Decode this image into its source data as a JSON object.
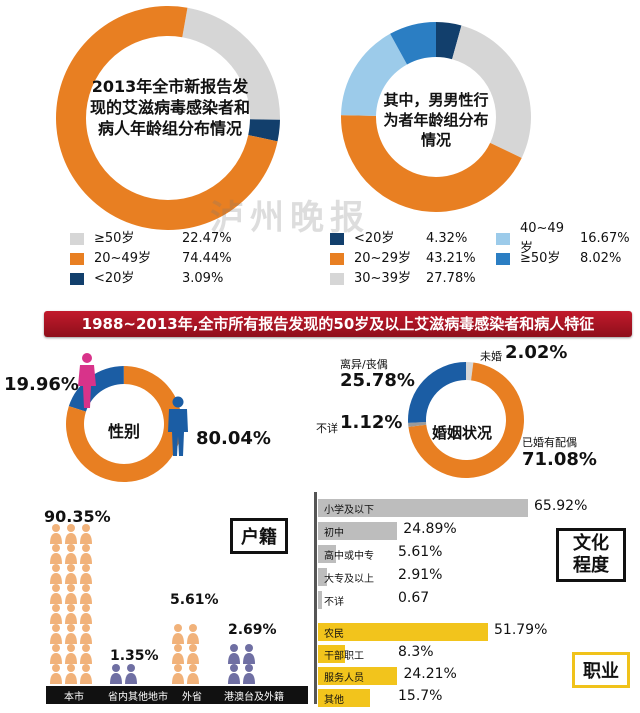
{
  "chart_data": [
    {
      "type": "pie",
      "title": "2013年全市新报告发现的艾滋病毒感染者和病人年龄组分布情况",
      "slices": [
        {
          "label": "≥50岁",
          "value": 22.47,
          "display": "22.47%",
          "color": "#d6d6d6"
        },
        {
          "label": "20~49岁",
          "value": 74.44,
          "display": "74.44%",
          "color": "#e87f22"
        },
        {
          "label": "<20岁",
          "value": 3.09,
          "display": "3.09%",
          "color": "#123f6c"
        }
      ]
    },
    {
      "type": "pie",
      "title": "其中，男男性行为者年龄组分布情况",
      "slices": [
        {
          "label": "<20岁",
          "value": 4.32,
          "display": "4.32%",
          "color": "#123f6c"
        },
        {
          "label": "20~29岁",
          "value": 43.21,
          "display": "43.21%",
          "color": "#e87f22"
        },
        {
          "label": "30~39岁",
          "value": 27.78,
          "display": "27.78%",
          "color": "#d6d6d6"
        },
        {
          "label": "40~49岁",
          "value": 16.67,
          "display": "16.67%",
          "color": "#9ccbea"
        },
        {
          "label": "≥50岁",
          "value": 8.02,
          "display": "8.02%",
          "color": "#2b7ec3"
        }
      ]
    },
    {
      "type": "pie",
      "title": "性别",
      "slices": [
        {
          "label": "female",
          "value": 19.96,
          "display": "19.96%",
          "color": "#1b5da4"
        },
        {
          "label": "male",
          "value": 80.04,
          "display": "80.04%",
          "color": "#e87f22"
        }
      ]
    },
    {
      "type": "pie",
      "title": "婚姻状况",
      "slices": [
        {
          "label": "未婚",
          "value": 2.02,
          "display": "2.02%",
          "color": "#d6d6d6"
        },
        {
          "label": "已婚有配偶",
          "value": 71.08,
          "display": "71.08%",
          "color": "#e87f22"
        },
        {
          "label": "不详",
          "value": 1.12,
          "display": "1.12%",
          "color": "#9a9a9a"
        },
        {
          "label": "离异/丧偶",
          "value": 25.78,
          "display": "25.78%",
          "color": "#1b5da4"
        }
      ]
    },
    {
      "type": "bar",
      "title": "户籍",
      "categories": [
        "本市",
        "省内其他地市",
        "外省",
        "港澳台及外籍"
      ],
      "values": [
        90.35,
        1.35,
        5.61,
        2.69
      ],
      "display": [
        "90.35%",
        "1.35%",
        "5.61%",
        "2.69%"
      ]
    },
    {
      "type": "bar",
      "title": "文化程度",
      "categories": [
        "小学及以下",
        "初中",
        "高中或中专",
        "大专及以上",
        "不详"
      ],
      "values": [
        65.92,
        24.89,
        5.61,
        2.91,
        0.67
      ],
      "display": [
        "65.92%",
        "24.89%",
        "5.61%",
        "2.91%",
        "0.67"
      ]
    },
    {
      "type": "bar",
      "title": "职业",
      "categories": [
        "农民",
        "干部职工",
        "服务人员",
        "其他"
      ],
      "values": [
        51.79,
        8.3,
        24.21,
        15.7
      ],
      "display": [
        "51.79%",
        "8.3%",
        "24.21%",
        "15.7%"
      ]
    }
  ],
  "banner": "1988~2013年,全市所有报告发现的50岁及以上艾滋病毒感染者和病人特征",
  "watermark": "泸州晚报",
  "colors": {
    "orange": "#e87f22",
    "gray": "#d6d6d6",
    "navy": "#123f6c",
    "mid_blue": "#2b7ec3",
    "light_blue": "#9ccbea",
    "banner_red": "#b3192a",
    "yellow": "#f2c41c",
    "icon_orange": "#f1b27a",
    "icon_purple": "#6f6fa3",
    "female_pink": "#d8338a",
    "male_blue": "#1b5da4"
  }
}
